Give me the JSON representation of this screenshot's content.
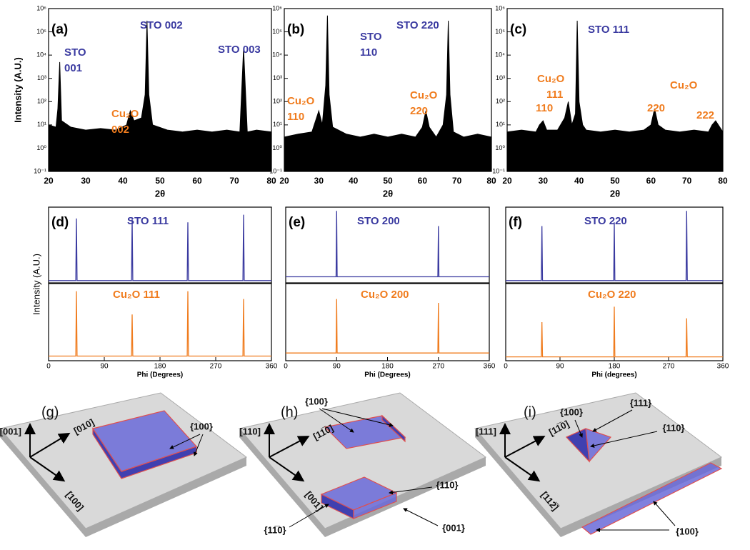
{
  "chart_data": [
    {
      "type": "area",
      "panel": "(a)",
      "ylabel": "Intensity (A.U.)",
      "xlabel": "2θ",
      "log_y": true,
      "color": "#000000",
      "x": [
        20,
        22,
        22.5,
        23,
        23.5,
        26,
        30,
        34,
        38,
        41,
        42,
        43,
        45,
        46,
        46.5,
        47,
        48,
        52,
        56,
        60,
        64,
        68,
        71.5,
        72.5,
        73.5,
        76,
        80
      ],
      "values": [
        10,
        8,
        50,
        5000,
        15,
        8,
        6,
        7,
        6,
        10,
        40,
        15,
        20,
        200,
        300000,
        200,
        10,
        6,
        5,
        6,
        5,
        6,
        5,
        20000,
        5,
        6,
        5
      ],
      "xlim": [
        20,
        80
      ],
      "xticks": [
        20,
        30,
        40,
        50,
        60,
        70,
        80
      ],
      "ylim": [
        0.1,
        1000000
      ],
      "yticks": [
        {
          "value": 0.1,
          "label": "10⁻¹"
        },
        {
          "value": 1,
          "label": "10⁰"
        },
        {
          "value": 10,
          "label": "10¹"
        },
        {
          "value": 100,
          "label": "10²"
        },
        {
          "value": 1000,
          "label": "10³"
        },
        {
          "value": 10000,
          "label": "10⁴"
        },
        {
          "value": 100000,
          "label": "10⁵"
        },
        {
          "value": 1000000,
          "label": "10⁶"
        }
      ],
      "annotations": [
        {
          "text": [
            "STO",
            "001"
          ],
          "color": "#3a3aa0"
        },
        {
          "text": [
            "Cu₂O",
            "002"
          ],
          "color": "#f07c1e"
        },
        {
          "text": [
            "STO 002"
          ],
          "color": "#3a3aa0"
        },
        {
          "text": [
            "STO 003"
          ],
          "color": "#3a3aa0"
        }
      ]
    },
    {
      "type": "area",
      "panel": "(b)",
      "xlabel": "2θ",
      "log_y": true,
      "color": "#000000",
      "x": [
        20,
        24,
        28,
        30,
        31,
        32,
        32.5,
        33,
        34,
        38,
        42,
        46,
        50,
        54,
        58,
        60,
        61,
        62,
        64,
        66,
        67,
        67.5,
        68,
        69,
        72,
        76,
        80
      ],
      "values": [
        3,
        4,
        5,
        40,
        10,
        500,
        500000,
        200,
        8,
        4,
        3,
        4,
        3,
        4,
        3,
        8,
        40,
        8,
        3,
        10,
        200,
        300000,
        200,
        5,
        3,
        4,
        3
      ],
      "xlim": [
        20,
        80
      ],
      "xticks": [
        20,
        30,
        40,
        50,
        60,
        70,
        80
      ],
      "ylim": [
        0.1,
        1000000
      ],
      "yticks": [
        {
          "value": 0.1,
          "label": "10⁻¹"
        },
        {
          "value": 1,
          "label": "10⁰"
        },
        {
          "value": 10,
          "label": "10¹"
        },
        {
          "value": 100,
          "label": "10²"
        },
        {
          "value": 1000,
          "label": "10³"
        },
        {
          "value": 10000,
          "label": "10⁴"
        },
        {
          "value": 100000,
          "label": "10⁵"
        },
        {
          "value": 1000000,
          "label": "10⁶"
        }
      ],
      "annotations": [
        {
          "text": [
            "STO",
            "110"
          ],
          "color": "#3a3aa0"
        },
        {
          "text": [
            "Cu₂O",
            "110"
          ],
          "color": "#f07c1e"
        },
        {
          "text": [
            "STO 220"
          ],
          "color": "#3a3aa0"
        },
        {
          "text": [
            "Cu₂O",
            "220"
          ],
          "color": "#f07c1e"
        }
      ]
    },
    {
      "type": "area",
      "panel": "(c)",
      "xlabel": "2θ",
      "log_y": true,
      "color": "#000000",
      "x": [
        20,
        24,
        28,
        29,
        30,
        31,
        34,
        36,
        37,
        38,
        39,
        39.5,
        40,
        41,
        42,
        46,
        50,
        54,
        58,
        60,
        61,
        62,
        64,
        68,
        72,
        76,
        77,
        78,
        80
      ],
      "values": [
        5,
        6,
        5,
        10,
        15,
        6,
        6,
        20,
        100,
        10,
        30,
        300000,
        100,
        10,
        6,
        5,
        6,
        5,
        6,
        10,
        50,
        10,
        6,
        5,
        6,
        5,
        10,
        15,
        5
      ],
      "xlim": [
        20,
        80
      ],
      "xticks": [
        20,
        30,
        40,
        50,
        60,
        70,
        80
      ],
      "ylim": [
        0.1,
        1000000
      ],
      "yticks": [
        {
          "value": 0.1,
          "label": "10⁻¹"
        },
        {
          "value": 1,
          "label": "10⁰"
        },
        {
          "value": 10,
          "label": "10¹"
        },
        {
          "value": 100,
          "label": "10²"
        },
        {
          "value": 1000,
          "label": "10³"
        },
        {
          "value": 10000,
          "label": "10⁴"
        },
        {
          "value": 100000,
          "label": "10⁵"
        },
        {
          "value": 1000000,
          "label": "10⁶"
        }
      ],
      "annotations": [
        {
          "text": [
            "STO 111"
          ],
          "color": "#3a3aa0"
        },
        {
          "text": [
            "Cu₂O"
          ],
          "color": "#f07c1e"
        },
        {
          "text": [
            "111"
          ],
          "color": "#f07c1e"
        },
        {
          "text": [
            "110"
          ],
          "color": "#f07c1e"
        },
        {
          "text": [
            "220"
          ],
          "color": "#f07c1e"
        },
        {
          "text": [
            "Cu₂O"
          ],
          "color": "#f07c1e"
        },
        {
          "text": [
            "222"
          ],
          "color": "#f07c1e"
        }
      ]
    },
    {
      "type": "line",
      "panel": "(d)",
      "ylabel": "Intensity (A.U.)",
      "color": "#3a3aa0",
      "x": [
        0,
        44,
        45,
        46,
        134,
        135,
        136,
        224,
        225,
        226,
        314,
        315,
        316,
        360
      ],
      "values": [
        0.03,
        0.03,
        0.85,
        0.03,
        0.03,
        0.85,
        0.03,
        0.03,
        0.8,
        0.03,
        0.03,
        0.9,
        0.03,
        0.03
      ],
      "xlim": [
        0,
        360
      ],
      "ylim": [
        0,
        1
      ],
      "annotations": [
        {
          "text": [
            "STO 111"
          ],
          "color": "#3a3aa0"
        }
      ]
    },
    {
      "type": "line",
      "xlabel": "Phi (Degrees)",
      "color": "#f07c1e",
      "x": [
        0,
        44,
        45,
        46,
        134,
        135,
        136,
        224,
        225,
        226,
        314,
        315,
        316,
        360
      ],
      "values": [
        0.06,
        0.06,
        0.9,
        0.06,
        0.06,
        0.6,
        0.06,
        0.06,
        0.9,
        0.06,
        0.06,
        0.8,
        0.06,
        0.06
      ],
      "xlim": [
        0,
        360
      ],
      "xticks": [
        0,
        90,
        180,
        270,
        360
      ],
      "ylim": [
        0,
        1
      ],
      "annotations": [
        {
          "text": [
            "Cu₂O 111"
          ],
          "color": "#f07c1e"
        }
      ]
    },
    {
      "type": "line",
      "panel": "(e)",
      "color": "#3a3aa0",
      "x": [
        0,
        89,
        90,
        91,
        269,
        270,
        271,
        360
      ],
      "values": [
        0.08,
        0.08,
        0.95,
        0.08,
        0.08,
        0.75,
        0.08,
        0.08
      ],
      "xlim": [
        0,
        360
      ],
      "ylim": [
        0,
        1
      ],
      "annotations": [
        {
          "text": [
            "STO 200"
          ],
          "color": "#3a3aa0"
        }
      ]
    },
    {
      "type": "line",
      "xlabel": "Phi (Degrees)",
      "color": "#f07c1e",
      "x": [
        0,
        89,
        90,
        91,
        269,
        270,
        271,
        360
      ],
      "values": [
        0.1,
        0.1,
        0.8,
        0.1,
        0.1,
        0.75,
        0.1,
        0.1
      ],
      "xlim": [
        0,
        360
      ],
      "xticks": [
        0,
        90,
        180,
        270,
        360
      ],
      "ylim": [
        0,
        1
      ],
      "annotations": [
        {
          "text": [
            "Cu₂O 200"
          ],
          "color": "#f07c1e"
        }
      ]
    },
    {
      "type": "line",
      "panel": "(f)",
      "color": "#3a3aa0",
      "x": [
        0,
        59,
        60,
        61,
        179,
        180,
        181,
        299,
        300,
        301,
        360
      ],
      "values": [
        0.03,
        0.03,
        0.75,
        0.03,
        0.03,
        0.8,
        0.03,
        0.03,
        0.95,
        0.03,
        0.03
      ],
      "xlim": [
        0,
        360
      ],
      "ylim": [
        0,
        1
      ],
      "annotations": [
        {
          "text": [
            "STO 220"
          ],
          "color": "#3a3aa0"
        }
      ]
    },
    {
      "type": "line",
      "xlabel": "Phi (degrees)",
      "color": "#f07c1e",
      "x": [
        0,
        59,
        60,
        61,
        179,
        180,
        181,
        299,
        300,
        301,
        360
      ],
      "values": [
        0.05,
        0.05,
        0.5,
        0.05,
        0.05,
        0.7,
        0.05,
        0.05,
        0.55,
        0.05,
        0.05
      ],
      "xlim": [
        0,
        360
      ],
      "xticks": [
        0,
        90,
        180,
        270,
        360
      ],
      "ylim": [
        0,
        1
      ],
      "annotations": [
        {
          "text": [
            "Cu₂O 220"
          ],
          "color": "#f07c1e"
        }
      ]
    }
  ],
  "schematics": [
    {
      "label": "(g)",
      "axes": [
        "[001]",
        "[010]",
        "[100]"
      ],
      "facets": [
        "{100}"
      ]
    },
    {
      "label": "(h)",
      "axes": [
        "[110]",
        "[11̅0]",
        "[001]"
      ],
      "facets": [
        "{100}",
        "{110}",
        "{11̅0}",
        "{001}"
      ]
    },
    {
      "label": "(i)",
      "axes": [
        "[111]",
        "[11̅0]",
        "[112̅]"
      ],
      "facets": [
        "{100}",
        "{111}",
        "{110}",
        "{100}"
      ]
    }
  ]
}
